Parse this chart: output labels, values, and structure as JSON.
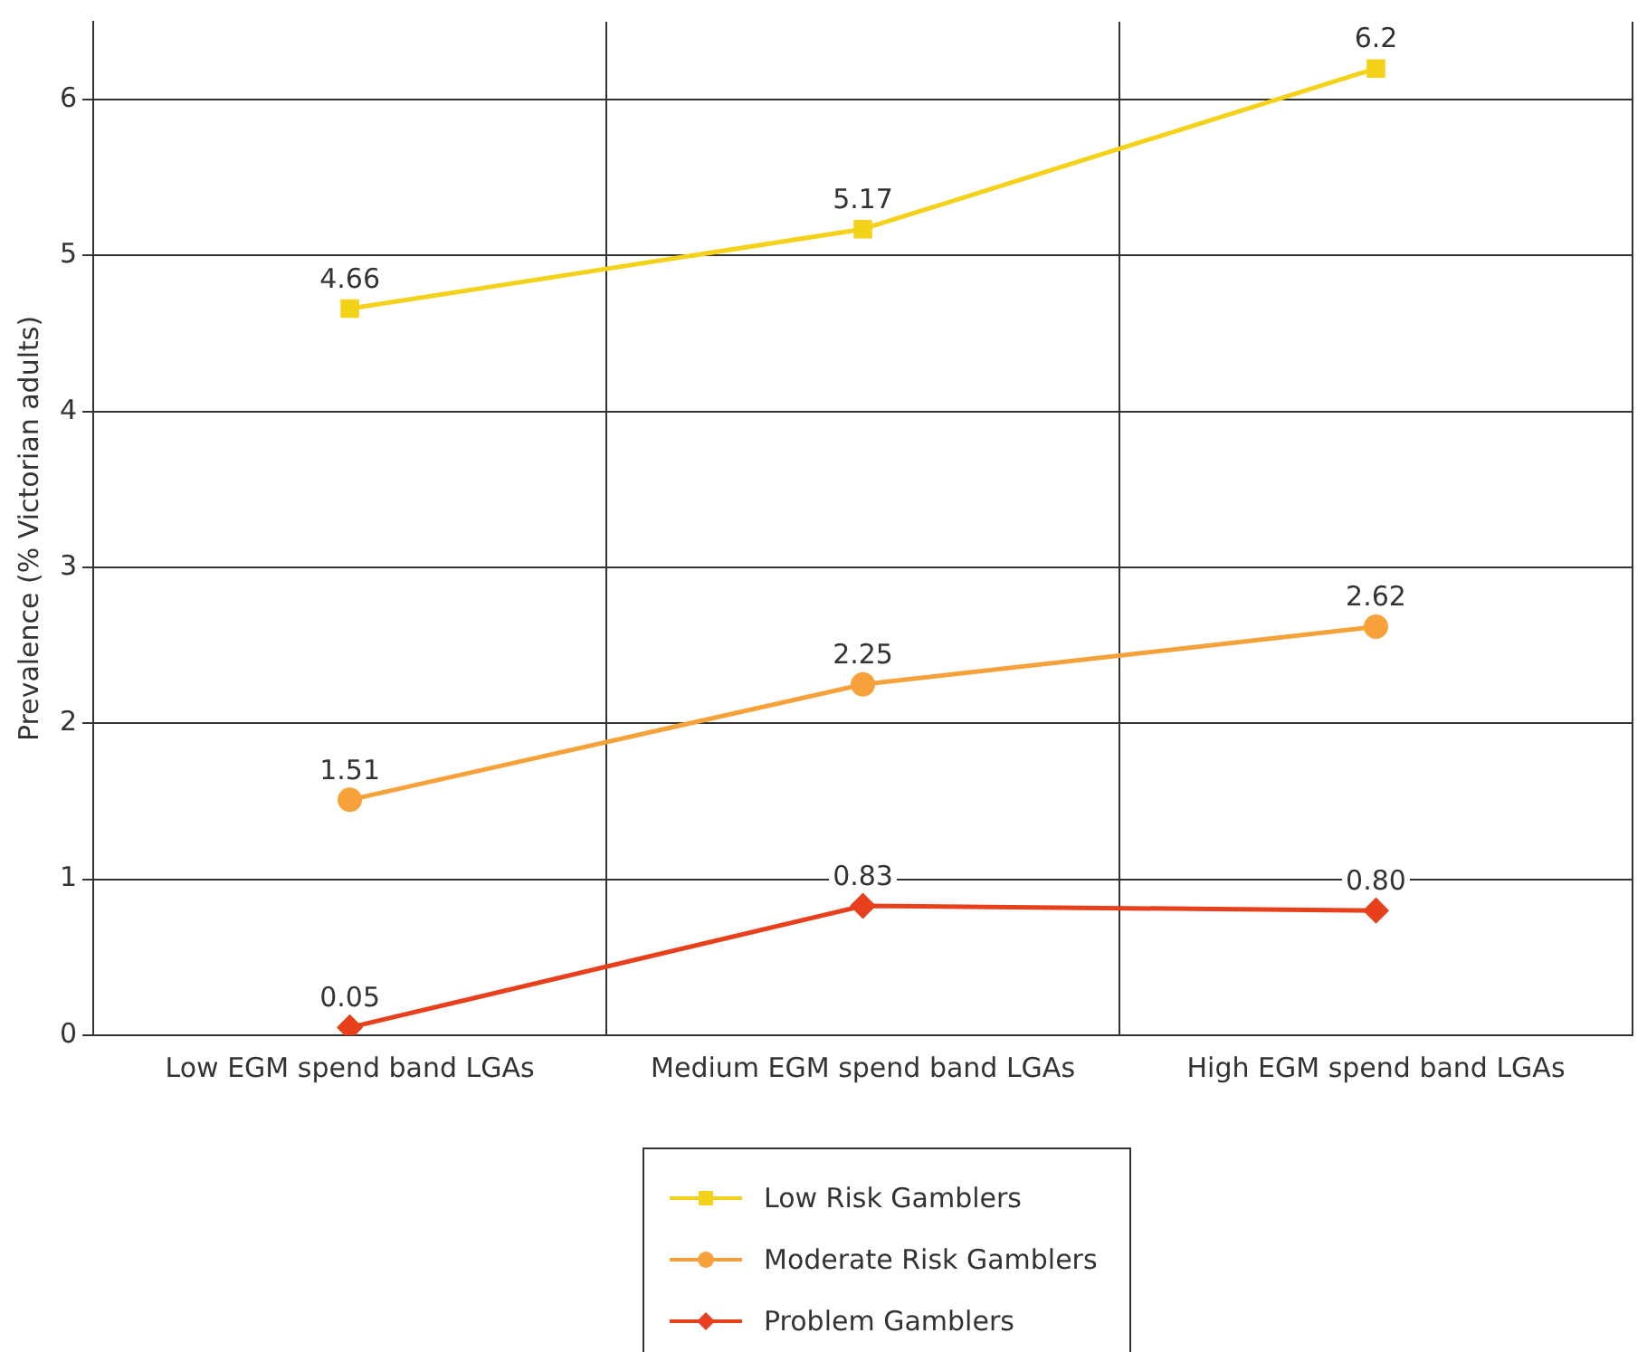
{
  "chart_data": {
    "type": "line",
    "ylabel": "Prevalence (% Victorian adults)",
    "categories": [
      "Low EGM spend band LGAs",
      "Medium EGM spend band LGAs",
      "High EGM spend band LGAs"
    ],
    "series": [
      {
        "name": "Low Risk Gamblers",
        "color": "#f5d21a",
        "marker": "square",
        "values": [
          4.66,
          5.17,
          6.2
        ],
        "value_labels": [
          "4.66",
          "5.17",
          "6.2"
        ]
      },
      {
        "name": "Moderate Risk Gamblers",
        "color": "#f7a13a",
        "marker": "circle",
        "values": [
          1.51,
          2.25,
          2.62
        ],
        "value_labels": [
          "1.51",
          "2.25",
          "2.62"
        ]
      },
      {
        "name": "Problem Gamblers",
        "color": "#e8401c",
        "marker": "diamond",
        "values": [
          0.05,
          0.83,
          0.8
        ],
        "value_labels": [
          "0.05",
          "0.83",
          "0.80"
        ]
      }
    ],
    "ylim": [
      0,
      6.5
    ],
    "yticks": [
      0,
      1,
      2,
      3,
      4,
      5,
      6
    ],
    "grid": true,
    "legend": "bottom"
  }
}
